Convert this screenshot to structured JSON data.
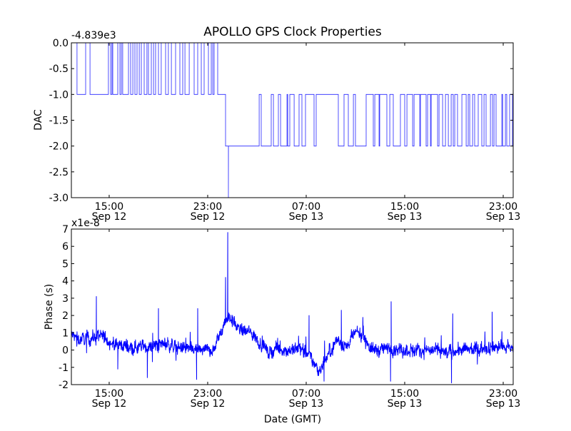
{
  "chart_data": [
    {
      "type": "line",
      "title": "APOLLO GPS Clock Properties",
      "ylabel": "DAC",
      "xlabel": "",
      "offset_label": "-4.839e3",
      "x_unit": "hours since Sep 12 00:00 GMT",
      "xlim": [
        11.93,
        47.81
      ],
      "ylim": [
        -3.0,
        0.0
      ],
      "yticks": [
        0.0,
        -0.5,
        -1.0,
        -1.5,
        -2.0,
        -2.5,
        -3.0
      ],
      "ytick_labels": [
        "0.0",
        "-0.5",
        "-1.0",
        "-1.5",
        "-2.0",
        "-2.5",
        "-3.0"
      ],
      "xticks": [
        15,
        23,
        31,
        39,
        47
      ],
      "xtick_labels": [
        [
          "15:00",
          "Sep 12"
        ],
        [
          "23:00",
          "Sep 12"
        ],
        [
          "07:00",
          "Sep 13"
        ],
        [
          "15:00",
          "Sep 13"
        ],
        [
          "23:00",
          "Sep 13"
        ]
      ],
      "color": "#0000ff",
      "segment1": {
        "start": 11.93,
        "end": 24.45,
        "base": -1,
        "high": 0,
        "pulses": [
          [
            11.93,
            12.39
          ],
          [
            13.09,
            13.44
          ],
          [
            14.94,
            15.12
          ],
          [
            15.23,
            15.29
          ],
          [
            15.7,
            15.87
          ],
          [
            15.99,
            16.1
          ],
          [
            16.57,
            16.74
          ],
          [
            16.92,
            17.09
          ],
          [
            17.26,
            17.44
          ],
          [
            17.61,
            17.84
          ],
          [
            18.07,
            18.19
          ],
          [
            18.42,
            18.6
          ],
          [
            18.77,
            19.0
          ],
          [
            19.23,
            19.58
          ],
          [
            19.81,
            20.05
          ],
          [
            20.39,
            20.74
          ],
          [
            20.97,
            21.15
          ],
          [
            21.5,
            21.9
          ],
          [
            22.19,
            22.48
          ],
          [
            22.71,
            23.06
          ],
          [
            23.29,
            23.41
          ],
          [
            23.52,
            23.81
          ]
        ]
      },
      "spike": {
        "x": 24.68,
        "y": -3
      },
      "segment2": {
        "start": 24.45,
        "end": 47.81,
        "base": -2,
        "high": -1,
        "pulses": [
          [
            27.18,
            27.35
          ],
          [
            28.16,
            28.34
          ],
          [
            28.74,
            28.92
          ],
          [
            29.44,
            29.5
          ],
          [
            29.67,
            30.02
          ],
          [
            30.42,
            30.65
          ],
          [
            30.94,
            31.64
          ],
          [
            31.81,
            33.61
          ],
          [
            34.07,
            34.42
          ],
          [
            34.83,
            35.0
          ],
          [
            35.87,
            36.45
          ],
          [
            36.57,
            36.92
          ],
          [
            36.97,
            37.55
          ],
          [
            37.79,
            38.07
          ],
          [
            38.65,
            39.0
          ],
          [
            39.18,
            39.64
          ],
          [
            39.76,
            40.22
          ],
          [
            40.28,
            40.74
          ],
          [
            40.86,
            41.09
          ],
          [
            41.15,
            41.67
          ],
          [
            41.79,
            42.08
          ],
          [
            42.31,
            42.54
          ],
          [
            42.77,
            42.94
          ],
          [
            43.06,
            43.29
          ],
          [
            43.64,
            43.99
          ],
          [
            44.16,
            44.28
          ],
          [
            44.51,
            44.68
          ],
          [
            44.97,
            45.26
          ],
          [
            45.44,
            45.61
          ],
          [
            45.96,
            46.13
          ],
          [
            46.25,
            46.42
          ],
          [
            46.89,
            46.95
          ],
          [
            47.18,
            47.29
          ],
          [
            47.52,
            47.75
          ]
        ]
      }
    },
    {
      "type": "line",
      "title": "",
      "ylabel": "Phase (s)",
      "xlabel": "Date (GMT)",
      "offset_label": "x1e-8",
      "x_unit": "hours since Sep 12 00:00 GMT",
      "xlim": [
        11.93,
        47.81
      ],
      "ylim": [
        -2,
        7
      ],
      "yticks": [
        -2,
        -1,
        0,
        1,
        2,
        3,
        4,
        5,
        6,
        7
      ],
      "ytick_labels": [
        "-2",
        "-1",
        "0",
        "1",
        "2",
        "3",
        "4",
        "5",
        "6",
        "7"
      ],
      "xticks": [
        15,
        23,
        31,
        39,
        47
      ],
      "xtick_labels": [
        [
          "15:00",
          "Sep 12"
        ],
        [
          "23:00",
          "Sep 12"
        ],
        [
          "07:00",
          "Sep 13"
        ],
        [
          "15:00",
          "Sep 13"
        ],
        [
          "23:00",
          "Sep 13"
        ]
      ],
      "color": "#0000ff",
      "noise_amplitude": 0.45,
      "baseline": [
        [
          11.93,
          0.9
        ],
        [
          12.5,
          0.6
        ],
        [
          13.5,
          0.7
        ],
        [
          14.5,
          0.8
        ],
        [
          15.5,
          0.3
        ],
        [
          17,
          0.2
        ],
        [
          18.5,
          0.2
        ],
        [
          19.5,
          0.4
        ],
        [
          20.5,
          0.2
        ],
        [
          22,
          0.0
        ],
        [
          23.5,
          0.0
        ],
        [
          24.3,
          1.5
        ],
        [
          24.7,
          2.0
        ],
        [
          25.5,
          1.2
        ],
        [
          26.5,
          1.0
        ],
        [
          27.5,
          0.3
        ],
        [
          28,
          -0.2
        ],
        [
          28.5,
          0.1
        ],
        [
          29.5,
          0.0
        ],
        [
          30.5,
          0.1
        ],
        [
          31.3,
          -0.4
        ],
        [
          32,
          -1.2
        ],
        [
          32.6,
          -0.5
        ],
        [
          33.5,
          0.6
        ],
        [
          34.3,
          0.2
        ],
        [
          35,
          1.0
        ],
        [
          35.7,
          0.8
        ],
        [
          36.3,
          0.0
        ],
        [
          38,
          0.1
        ],
        [
          39.5,
          0.0
        ],
        [
          41,
          0.0
        ],
        [
          42.5,
          -0.2
        ],
        [
          43,
          0.0
        ],
        [
          44.5,
          0.0
        ],
        [
          46,
          0.2
        ],
        [
          47.81,
          0.1
        ]
      ],
      "spikes": [
        [
          13.96,
          3.1
        ],
        [
          19.0,
          2.4
        ],
        [
          22.19,
          2.4
        ],
        [
          24.45,
          4.2
        ],
        [
          24.63,
          6.8
        ],
        [
          31.23,
          2.0
        ],
        [
          33.85,
          2.3
        ],
        [
          37.9,
          2.8
        ],
        [
          42.9,
          2.1
        ],
        [
          46.1,
          2.2
        ],
        [
          15.7,
          -1.1
        ],
        [
          18.1,
          -1.6
        ],
        [
          22.1,
          -1.7
        ],
        [
          32.45,
          -1.8
        ],
        [
          37.85,
          -1.8
        ],
        [
          42.8,
          -1.9
        ]
      ]
    }
  ]
}
